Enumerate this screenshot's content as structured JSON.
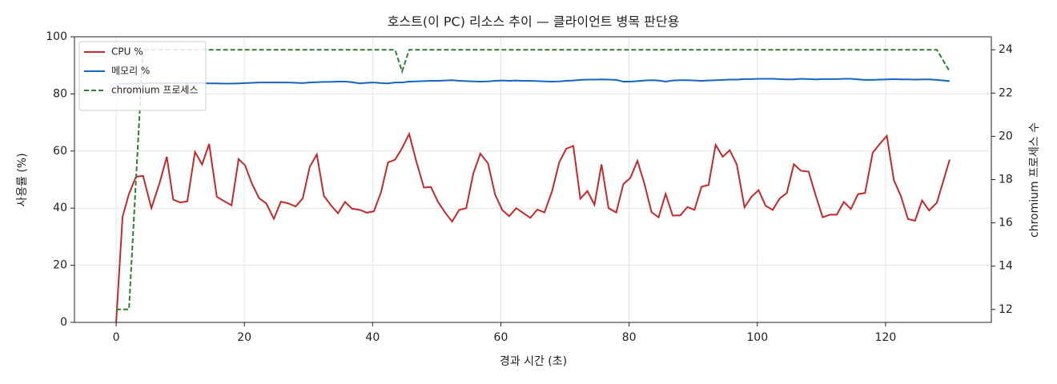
{
  "chart_data": {
    "type": "line",
    "title": "호스트(이 PC) 리소스 추이 — 클라이언트 병목 판단용",
    "xlabel": "경과 시간 (초)",
    "ylabel": "사용률 (%)",
    "y2label": "chromium 프로세스 수",
    "xlim": [
      -6.5,
      136.5
    ],
    "xticks": [
      0,
      20,
      40,
      60,
      80,
      100,
      120
    ],
    "ylim": [
      0,
      100
    ],
    "yticks": [
      0,
      20,
      40,
      60,
      80,
      100
    ],
    "y2lim": [
      11.4,
      24.6
    ],
    "y2ticks": [
      12,
      14,
      16,
      18,
      20,
      22,
      24
    ],
    "grid": true,
    "legend": "upper left",
    "x": [
      0,
      1,
      2,
      3.1,
      4.2,
      5.5,
      6.8,
      7.9,
      8.9,
      10,
      11.1,
      12.3,
      13.4,
      14.5,
      15.7,
      16.8,
      18,
      19.1,
      20.1,
      21.2,
      22.3,
      23.4,
      24.6,
      25.7,
      26.8,
      28,
      29.1,
      30.2,
      31.3,
      32.4,
      33.5,
      34.6,
      35.7,
      36.8,
      38,
      39.1,
      40.2,
      41.3,
      42.4,
      43.5,
      44.6,
      45.7,
      46.8,
      48,
      49.1,
      50.2,
      51.3,
      52.4,
      53.5,
      54.6,
      55.7,
      56.8,
      58,
      59.1,
      60.2,
      61.3,
      62.4,
      63.5,
      64.6,
      65.7,
      66.8,
      68,
      69.1,
      70.2,
      71.3,
      72.4,
      73.5,
      74.6,
      75.7,
      76.8,
      78,
      79.1,
      80.2,
      81.3,
      82.4,
      83.5,
      84.6,
      85.7,
      86.8,
      88,
      89.1,
      90.2,
      91.3,
      92.4,
      93.5,
      94.6,
      95.7,
      96.8,
      98,
      99.1,
      100.2,
      101.3,
      102.4,
      103.5,
      104.6,
      105.7,
      106.8,
      108,
      109.1,
      110.2,
      111.3,
      112.4,
      113.5,
      114.6,
      115.7,
      116.8,
      118,
      119.1,
      120.2,
      121.3,
      122.4,
      123.5,
      124.6,
      125.7,
      126.8,
      128,
      130
    ],
    "series": [
      {
        "name": "CPU %",
        "color": "#c62828",
        "linestyle": "solid",
        "values": [
          0,
          37,
          45,
          51,
          51.3,
          40,
          49,
          58,
          43,
          42,
          42.4,
          59.7,
          55.3,
          62.5,
          44,
          42.5,
          41,
          57.2,
          55,
          48.5,
          43.5,
          41.7,
          36.3,
          42.3,
          41.7,
          40.6,
          43.4,
          54.5,
          58.8,
          44.3,
          41,
          38.2,
          42.2,
          39.8,
          39.4,
          38.4,
          38.9,
          45.5,
          56,
          57,
          61,
          66,
          56.5,
          47.2,
          47.4,
          42.2,
          38.5,
          35.3,
          39.4,
          40,
          52.1,
          59.1,
          55.7,
          44.8,
          39.4,
          37.2,
          40,
          38.3,
          36.6,
          39.5,
          38.5,
          46,
          56,
          60.8,
          61.8,
          43.3,
          46,
          41.2,
          55.3,
          40,
          38.5,
          48.4,
          50.6,
          56.6,
          48.5,
          38.6,
          36.8,
          45,
          37.4,
          37.5,
          40.4,
          39.4,
          47.5,
          48.1,
          62.2,
          58,
          60.3,
          55.3,
          40.3,
          44,
          46.3,
          40.8,
          39.4,
          43.4,
          45.3,
          55.4,
          53.1,
          52.8,
          44.5,
          36.8,
          37.7,
          37.7,
          42.2,
          39.7,
          44.9,
          45.3,
          59.4,
          62.5,
          65.3,
          49.8,
          44.2,
          36.2,
          35.6,
          42.7,
          39.2,
          41.9,
          57
        ]
      },
      {
        "name": "메모리 %",
        "color": "#1565c0",
        "linestyle": "solid",
        "values": [
          83.5,
          83.6,
          83.6,
          83.7,
          83.7,
          83.8,
          83.8,
          83.7,
          83.8,
          83.8,
          83.7,
          83.8,
          83.8,
          83.7,
          83.7,
          83.6,
          83.6,
          83.7,
          83.8,
          83.9,
          84,
          84,
          84,
          84,
          84,
          83.9,
          83.8,
          84,
          84.1,
          84.2,
          84.2,
          84.3,
          84.3,
          84.1,
          83.7,
          83.9,
          84,
          83.8,
          83.7,
          84,
          84,
          84.3,
          84.4,
          84.5,
          84.6,
          84.6,
          84.7,
          84.8,
          84.6,
          84.5,
          84.4,
          84.3,
          84.4,
          84.6,
          84.7,
          84.6,
          84.7,
          84.6,
          84.6,
          84.5,
          84.4,
          84.3,
          84.4,
          84.6,
          84.7,
          84.9,
          85,
          85,
          85.1,
          85,
          84.9,
          84.3,
          84.3,
          84.5,
          84.7,
          84.8,
          84.7,
          84.3,
          84.7,
          84.8,
          84.8,
          84.7,
          84.6,
          84.7,
          84.8,
          84.9,
          85,
          85,
          85.2,
          85.2,
          85.3,
          85.3,
          85.3,
          85.2,
          85.1,
          85.1,
          85.3,
          85.2,
          85.1,
          85.2,
          85.2,
          85.2,
          85.3,
          85.3,
          85.1,
          84.9,
          84.9,
          85,
          85.1,
          85.2,
          85.1,
          85.1,
          85,
          85.1,
          85.1,
          84.9,
          84.5
        ]
      },
      {
        "name": "chromium 프로세스",
        "color": "#2e7d32",
        "linestyle": "dashed",
        "axis": "y2",
        "values": [
          12,
          12,
          12,
          18,
          24,
          24,
          24,
          24,
          24,
          24,
          24,
          24,
          24,
          24,
          24,
          24,
          24,
          24,
          24,
          24,
          24,
          24,
          24,
          24,
          24,
          24,
          24,
          24,
          24,
          24,
          24,
          24,
          24,
          24,
          24,
          24,
          24,
          24,
          24,
          24,
          23,
          24,
          24,
          24,
          24,
          24,
          24,
          24,
          24,
          24,
          24,
          24,
          24,
          24,
          24,
          24,
          24,
          24,
          24,
          24,
          24,
          24,
          24,
          24,
          24,
          24,
          24,
          24,
          24,
          24,
          24,
          24,
          24,
          24,
          24,
          24,
          24,
          24,
          24,
          24,
          24,
          24,
          24,
          24,
          24,
          24,
          24,
          24,
          24,
          24,
          24,
          24,
          24,
          24,
          24,
          24,
          24,
          24,
          24,
          24,
          24,
          24,
          24,
          24,
          24,
          24,
          24,
          24,
          24,
          24,
          24,
          24,
          24,
          24,
          24,
          24,
          23
        ]
      }
    ]
  }
}
